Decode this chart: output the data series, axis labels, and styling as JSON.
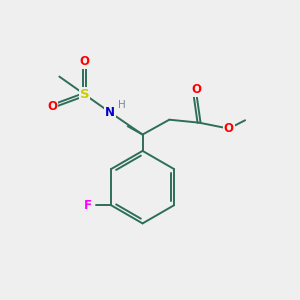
{
  "background_color": "#efefef",
  "bond_color": "#2d6e5a",
  "atom_colors": {
    "O": "#ff0000",
    "N": "#0000cd",
    "S": "#cccc00",
    "F": "#ff00ff",
    "H": "#778899",
    "C": "#2d6e5a"
  },
  "figsize": [
    3.0,
    3.0
  ],
  "dpi": 100,
  "lw": 1.4,
  "fs": 8.5,
  "fs_small": 7.5
}
